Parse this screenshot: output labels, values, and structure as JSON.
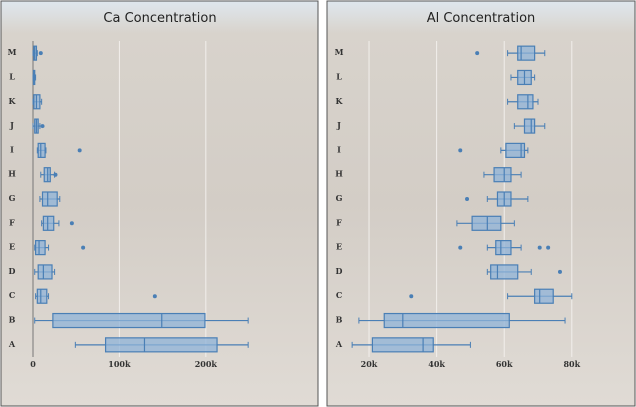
{
  "chart_data": [
    {
      "type": "box",
      "title": "Ca Concentration",
      "color": "#4a7fb5",
      "categories": [
        "M",
        "L",
        "K",
        "J",
        "I",
        "H",
        "G",
        "F",
        "E",
        "D",
        "C",
        "B",
        "A"
      ],
      "boxes": [
        {
          "min": 0,
          "q1": 1000,
          "median": 2000,
          "q3": 4000,
          "max": 5000,
          "outliers": [
            9000
          ]
        },
        {
          "min": 0,
          "q1": 500,
          "median": 1000,
          "q3": 2000,
          "max": 3000
        },
        {
          "min": 0,
          "q1": 1000,
          "median": 4000,
          "q3": 8000,
          "max": 10000
        },
        {
          "min": 0,
          "q1": 2000,
          "median": 4000,
          "q3": 6000,
          "max": 8000,
          "outliers": [
            11000
          ]
        },
        {
          "min": 5000,
          "q1": 6000,
          "median": 9000,
          "q3": 14000,
          "max": 15000,
          "outliers": [
            54000
          ]
        },
        {
          "min": 9000,
          "q1": 13000,
          "median": 17000,
          "q3": 20000,
          "max": 25000,
          "outliers": [
            26000
          ]
        },
        {
          "min": 8000,
          "q1": 11000,
          "median": 17000,
          "q3": 28000,
          "max": 31000
        },
        {
          "min": 10000,
          "q1": 12000,
          "median": 17000,
          "q3": 24000,
          "max": 30000,
          "outliers": [
            45000
          ]
        },
        {
          "min": 2000,
          "q1": 3000,
          "median": 7000,
          "q3": 14000,
          "max": 18000,
          "outliers": [
            58000
          ]
        },
        {
          "min": 2000,
          "q1": 6000,
          "median": 12000,
          "q3": 22000,
          "max": 25000
        },
        {
          "min": 3000,
          "q1": 5000,
          "median": 9000,
          "q3": 16000,
          "max": 18000,
          "outliers": [
            141000
          ]
        },
        {
          "min": 2000,
          "q1": 23000,
          "median": 149000,
          "q3": 199000,
          "max": 249000
        },
        {
          "min": 49000,
          "q1": 84000,
          "median": 129000,
          "q3": 213000,
          "max": 249000
        }
      ],
      "xlim": [
        0,
        309000
      ],
      "xticks": [
        0,
        {
          "value": 100000,
          "label": "100k"
        },
        {
          "value": 200000,
          "label": "200k"
        }
      ],
      "grid": true
    },
    {
      "type": "box",
      "title": "Al Concentration",
      "color": "#4a7fb5",
      "categories": [
        "M",
        "L",
        "K",
        "J",
        "I",
        "H",
        "G",
        "F",
        "E",
        "D",
        "C",
        "B",
        "A"
      ],
      "boxes": [
        {
          "min": 61000,
          "q1": 64000,
          "median": 65000,
          "q3": 69000,
          "max": 72000,
          "outliers": [
            52000
          ]
        },
        {
          "min": 62000,
          "q1": 64000,
          "median": 66000,
          "q3": 68000,
          "max": 69000
        },
        {
          "min": 61000,
          "q1": 64000,
          "median": 67000,
          "q3": 68500,
          "max": 70000
        },
        {
          "min": 63000,
          "q1": 66000,
          "median": 68000,
          "q3": 69000,
          "max": 72000
        },
        {
          "min": 59000,
          "q1": 60500,
          "median": 65000,
          "q3": 66000,
          "max": 67000,
          "outliers": [
            47000
          ]
        },
        {
          "min": 54000,
          "q1": 57000,
          "median": 60000,
          "q3": 62000,
          "max": 65000
        },
        {
          "min": 55000,
          "q1": 58000,
          "median": 60000,
          "q3": 62000,
          "max": 67000,
          "outliers": [
            49000
          ]
        },
        {
          "min": 46000,
          "q1": 50500,
          "median": 55000,
          "q3": 59000,
          "max": 63000
        },
        {
          "min": 55000,
          "q1": 57500,
          "median": 59000,
          "q3": 62000,
          "max": 65000,
          "outliers": [
            47000,
            70500,
            73000
          ]
        },
        {
          "min": 55000,
          "q1": 56000,
          "median": 58000,
          "q3": 64000,
          "max": 68000,
          "outliers": [
            76500
          ]
        },
        {
          "min": 61000,
          "q1": 69000,
          "median": 70500,
          "q3": 74500,
          "max": 80000,
          "outliers": [
            32500
          ]
        },
        {
          "min": 17000,
          "q1": 24500,
          "median": 30000,
          "q3": 61500,
          "max": 78000
        },
        {
          "min": 15000,
          "q1": 21000,
          "median": 36000,
          "q3": 39000,
          "max": 50000
        }
      ],
      "xlim": [
        12300,
        95000
      ],
      "xticks": [
        {
          "value": 20000,
          "label": "20k"
        },
        {
          "value": 40000,
          "label": "40k"
        },
        {
          "value": 60000,
          "label": "60k"
        },
        {
          "value": 80000,
          "label": "80k"
        }
      ],
      "grid": true
    }
  ]
}
